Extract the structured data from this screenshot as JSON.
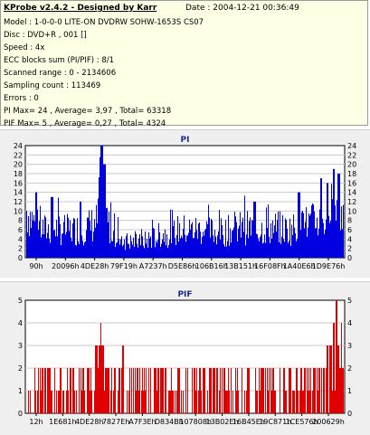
{
  "info": {
    "title": "KProbe v2.4.2 - Designed by Karr",
    "date": "Date : 2004-12-21 00:36:49",
    "lines": [
      "Model : 1-0-0-0 LITE-ON DVDRW SOHW-1653S CS07",
      "Disc : DVD+R , 001 []",
      "Speed : 4x",
      "ECC blocks sum (PI/PIF) : 8/1",
      "Scanned range : 0 - 2134606",
      "Sampling count : 113469",
      "Errors : 0",
      "PI Max= 24 , Average= 3,97 , Total= 63318",
      "PIF Max= 5 , Average= 0,27 , Total= 4324"
    ]
  },
  "colors": {
    "info_bg": "#ffffe6",
    "panel_bg": "#efefef",
    "plot_bg": "#ffffff",
    "pi_bar": "#0000e0",
    "pif_bar": "#e00000",
    "title": "#1a2a8a"
  },
  "chart_data": [
    {
      "type": "bar",
      "title": "PI",
      "ylim": [
        0,
        24
      ],
      "yticks": [
        "0",
        "2",
        "4",
        "6",
        "8",
        "10",
        "12",
        "14",
        "16",
        "18",
        "20",
        "22",
        "24"
      ],
      "xticks": [
        "90h",
        "20096h",
        "4DE28h",
        "79F19h",
        "A7237h",
        "D5E86h",
        "106B16h",
        "13B151h",
        "16F08Fh",
        "1A40E6h",
        "1D9E76h"
      ],
      "grid": true,
      "profile": [
        [
          0,
          12
        ],
        [
          3,
          8
        ],
        [
          6,
          7
        ],
        [
          9,
          7.5
        ],
        [
          12,
          7
        ],
        [
          15,
          7
        ],
        [
          18,
          7.5
        ],
        [
          20,
          8
        ],
        [
          22,
          9
        ],
        [
          23,
          11
        ],
        [
          23.5,
          16
        ],
        [
          24,
          19
        ],
        [
          25,
          11
        ],
        [
          26,
          8
        ],
        [
          28,
          6
        ],
        [
          30,
          5
        ],
        [
          32,
          4
        ],
        [
          34,
          4
        ],
        [
          36,
          3.8
        ],
        [
          38,
          4.5
        ],
        [
          40,
          5
        ],
        [
          43,
          6
        ],
        [
          46,
          6
        ],
        [
          48,
          7
        ],
        [
          50,
          7
        ],
        [
          53,
          7
        ],
        [
          56,
          7
        ],
        [
          59,
          6.5
        ],
        [
          62,
          6.5
        ],
        [
          65,
          7
        ],
        [
          68,
          7.5
        ],
        [
          70,
          7.5
        ],
        [
          73,
          7
        ],
        [
          76,
          7.5
        ],
        [
          79,
          7.5
        ],
        [
          82,
          7
        ],
        [
          85,
          7.5
        ],
        [
          87,
          8
        ],
        [
          89,
          8.5
        ],
        [
          91,
          9
        ],
        [
          93,
          10
        ],
        [
          95,
          9
        ],
        [
          97,
          10
        ],
        [
          99,
          9
        ],
        [
          100,
          11
        ]
      ],
      "peaks": [
        [
          23.8,
          24
        ],
        [
          24.5,
          20
        ],
        [
          3,
          14
        ],
        [
          8,
          13
        ],
        [
          17,
          12
        ],
        [
          72,
          12
        ],
        [
          86,
          14
        ],
        [
          93,
          17
        ],
        [
          95,
          16
        ],
        [
          97,
          19
        ],
        [
          98.5,
          18
        ]
      ]
    },
    {
      "type": "bar",
      "title": "PIF",
      "ylim": [
        0,
        5
      ],
      "yticks": [
        "0",
        "1",
        "2",
        "3",
        "4",
        "5"
      ],
      "xticks": [
        "12h",
        "1E681h",
        "4DE28h",
        "7827Eh",
        "A7F3Eh",
        "D834Bh",
        "107808h",
        "13B02Eh",
        "16B45Eh",
        "19C871h",
        "1CE576h",
        "200629h"
      ],
      "grid": true,
      "spikes": [
        [
          22,
          3
        ],
        [
          23,
          3
        ],
        [
          23.5,
          4
        ],
        [
          24,
          3
        ],
        [
          25,
          2
        ],
        [
          30.5,
          3
        ],
        [
          70,
          2
        ],
        [
          95,
          3
        ],
        [
          96,
          3
        ],
        [
          97,
          4
        ],
        [
          98,
          5
        ],
        [
          98.5,
          3
        ],
        [
          99.5,
          4
        ],
        [
          100,
          2
        ]
      ]
    }
  ]
}
